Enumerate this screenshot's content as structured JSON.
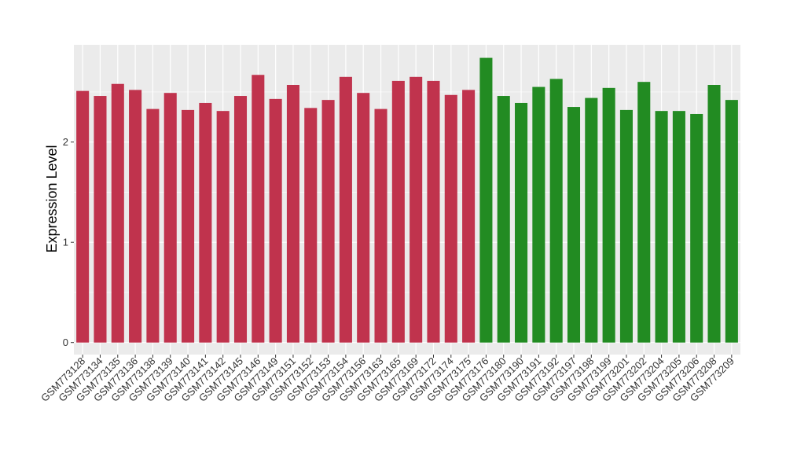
{
  "chart_data": {
    "type": "bar",
    "title": "",
    "xlabel": "",
    "ylabel": "Expression Level",
    "ylim": [
      -0.12,
      2.97
    ],
    "yticks": [
      0,
      1,
      2
    ],
    "grid": true,
    "legend": "none",
    "colors": {
      "group_a": "#c0334d",
      "group_b": "#228b22",
      "panel": "#ebebeb",
      "gridline": "#ffffff"
    },
    "categories": [
      "GSM773128",
      "GSM773134",
      "GSM773135",
      "GSM773136",
      "GSM773138",
      "GSM773139",
      "GSM773140",
      "GSM773141",
      "GSM773142",
      "GSM773145",
      "GSM773146",
      "GSM773149",
      "GSM773151",
      "GSM773152",
      "GSM773153",
      "GSM773154",
      "GSM773156",
      "GSM773163",
      "GSM773165",
      "GSM773169",
      "GSM773172",
      "GSM773174",
      "GSM773175",
      "GSM773176",
      "GSM773180",
      "GSM773190",
      "GSM773191",
      "GSM773192",
      "GSM773197",
      "GSM773198",
      "GSM773199",
      "GSM773201",
      "GSM773202",
      "GSM773204",
      "GSM773205",
      "GSM773206",
      "GSM773208",
      "GSM773209"
    ],
    "values": [
      2.51,
      2.46,
      2.58,
      2.52,
      2.33,
      2.49,
      2.32,
      2.39,
      2.31,
      2.46,
      2.67,
      2.43,
      2.57,
      2.34,
      2.42,
      2.65,
      2.49,
      2.33,
      2.61,
      2.65,
      2.61,
      2.47,
      2.52,
      2.84,
      2.46,
      2.39,
      2.55,
      2.63,
      2.35,
      2.44,
      2.54,
      2.32,
      2.6,
      2.31,
      2.31,
      2.28,
      2.57,
      2.42
    ],
    "groups": [
      "a",
      "a",
      "a",
      "a",
      "a",
      "a",
      "a",
      "a",
      "a",
      "a",
      "a",
      "a",
      "a",
      "a",
      "a",
      "a",
      "a",
      "a",
      "a",
      "a",
      "a",
      "a",
      "a",
      "b",
      "b",
      "b",
      "b",
      "b",
      "b",
      "b",
      "b",
      "b",
      "b",
      "b",
      "b",
      "b",
      "b",
      "b"
    ]
  }
}
